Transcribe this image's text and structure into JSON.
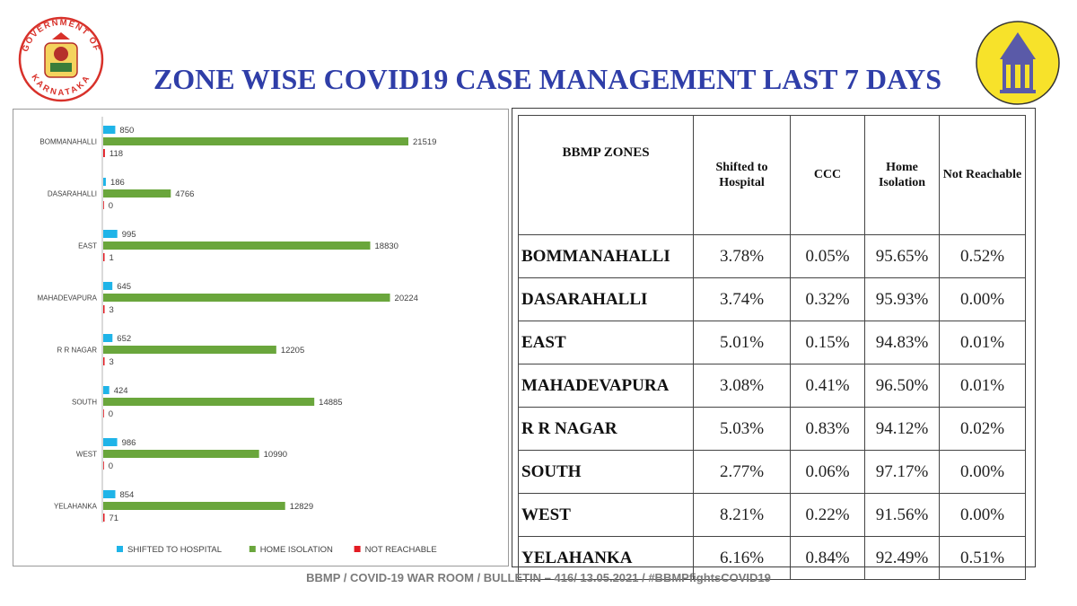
{
  "header": {
    "title": "ZONE WISE COVID19 CASE MANAGEMENT LAST 7 DAYS",
    "left_logo_text": "GOVERNMENT OF KARNATAKA"
  },
  "chart_data": {
    "type": "bar",
    "orientation": "horizontal",
    "categories": [
      "BOMMANAHALLI",
      "DASARAHALLI",
      "EAST",
      "MAHADEVAPURA",
      "R R NAGAR",
      "SOUTH",
      "WEST",
      "YELAHANKA"
    ],
    "series": [
      {
        "name": "SHIFTED TO HOSPITAL",
        "color": "#1fb4e8",
        "values": [
          850,
          186,
          995,
          645,
          652,
          424,
          986,
          854
        ]
      },
      {
        "name": "HOME ISOLATION",
        "color": "#6aa63c",
        "values": [
          21519,
          4766,
          18830,
          20224,
          12205,
          14885,
          10990,
          12829
        ]
      },
      {
        "name": "NOT REACHABLE",
        "color": "#e31b23",
        "values": [
          118,
          0,
          1,
          3,
          3,
          0,
          0,
          71
        ]
      }
    ],
    "xlim": [
      0,
      25000
    ],
    "legend_position": "bottom",
    "grid": false,
    "data_labels": true
  },
  "table": {
    "headers": [
      "BBMP ZONES",
      "Shifted to Hospital",
      "CCC",
      "Home Isolation",
      "Not Reachable"
    ],
    "rows": [
      {
        "zone": "BOMMANAHALLI",
        "hospital": "3.78%",
        "ccc": "0.05%",
        "home": "95.65%",
        "notreach": "0.52%"
      },
      {
        "zone": "DASARAHALLI",
        "hospital": "3.74%",
        "ccc": "0.32%",
        "home": "95.93%",
        "notreach": "0.00%"
      },
      {
        "zone": "EAST",
        "hospital": "5.01%",
        "ccc": "0.15%",
        "home": "94.83%",
        "notreach": "0.01%"
      },
      {
        "zone": "MAHADEVAPURA",
        "hospital": "3.08%",
        "ccc": "0.41%",
        "home": "96.50%",
        "notreach": "0.01%"
      },
      {
        "zone": "R R NAGAR",
        "hospital": "5.03%",
        "ccc": "0.83%",
        "home": "94.12%",
        "notreach": "0.02%"
      },
      {
        "zone": "SOUTH",
        "hospital": "2.77%",
        "ccc": "0.06%",
        "home": "97.17%",
        "notreach": "0.00%"
      },
      {
        "zone": "WEST",
        "hospital": "8.21%",
        "ccc": "0.22%",
        "home": "91.56%",
        "notreach": "0.00%"
      },
      {
        "zone": "YELAHANKA",
        "hospital": "6.16%",
        "ccc": "0.84%",
        "home": "92.49%",
        "notreach": "0.51%"
      }
    ]
  },
  "footer": {
    "text": "BBMP / COVID-19 WAR ROOM / BULLETIN – 416/ 13.05.2021 / #BBMPfightsCOVID19"
  },
  "colors": {
    "title": "#2f3ea8",
    "hospital": "#1fb4e8",
    "home": "#6aa63c",
    "notreach": "#e31b23"
  }
}
